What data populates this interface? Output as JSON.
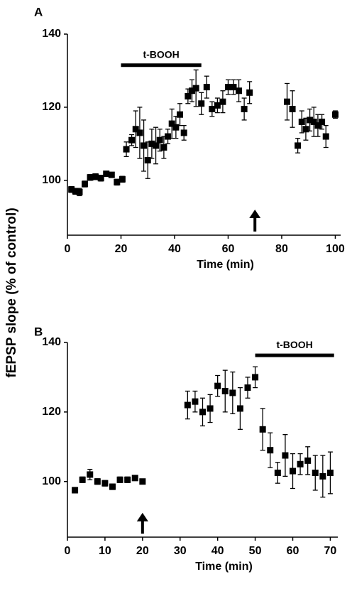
{
  "chart_data": [
    {
      "type": "scatter",
      "panel": "A",
      "ylabel": "fEPSP slope (% of control)",
      "xlabel": "Time (min)",
      "color": "#000000",
      "xlim": [
        0,
        102
      ],
      "ylim": [
        85,
        140
      ],
      "xticks": [
        0,
        20,
        40,
        60,
        80,
        100
      ],
      "yticks": [
        100,
        120,
        140
      ],
      "x": [
        1.5,
        3,
        4.5,
        6.5,
        8.5,
        10.5,
        12.5,
        14.5,
        16.5,
        18.5,
        20.5,
        22,
        24,
        25.5,
        27,
        28.5,
        30,
        31.5,
        33,
        34.5,
        36,
        37.5,
        39,
        40.5,
        42,
        43.5,
        45,
        46.5,
        48,
        50,
        52,
        54,
        56,
        58,
        60,
        62,
        64,
        66,
        68,
        82,
        84,
        86,
        87.5,
        89,
        90.5,
        92,
        93.5,
        95,
        96.5,
        100
      ],
      "values": [
        97.5,
        97,
        96.8,
        99,
        100.8,
        101,
        100.6,
        101.8,
        101.5,
        99.5,
        100.3,
        108.5,
        111,
        114,
        113,
        109.5,
        105.5,
        110,
        109.5,
        111,
        109,
        112,
        115.5,
        114.5,
        118,
        113,
        123,
        124.5,
        125.2,
        121,
        125.5,
        119.5,
        120.5,
        121.5,
        125.5,
        125.5,
        124.5,
        119.5,
        124,
        121.5,
        119.5,
        109.5,
        116,
        114,
        116.5,
        116,
        115,
        116,
        112,
        118
      ],
      "errors": [
        0.8,
        0.8,
        1,
        0.8,
        0.8,
        0.8,
        0.8,
        0.6,
        0.6,
        0.8,
        0.8,
        2,
        1.5,
        5,
        7,
        7,
        5,
        4,
        5,
        3,
        3,
        2,
        4,
        3,
        3,
        2,
        2,
        3,
        5,
        3,
        3,
        2,
        2,
        3,
        2,
        2,
        3,
        3,
        3,
        5,
        5,
        2,
        3,
        3,
        3,
        4,
        3,
        2,
        3,
        1
      ],
      "treatment": {
        "label": "t-BOOH",
        "x": [
          20,
          50
        ],
        "y": 131.5
      },
      "arrow": {
        "x": 70,
        "y": [
          86,
          92
        ]
      }
    },
    {
      "type": "scatter",
      "panel": "B",
      "xlabel": "Time (min)",
      "color": "#000000",
      "xlim": [
        0,
        72
      ],
      "ylim": [
        84,
        140
      ],
      "xticks": [
        0,
        10,
        20,
        30,
        40,
        50,
        60,
        70
      ],
      "yticks": [
        100,
        120,
        140
      ],
      "x": [
        2,
        4,
        6,
        8,
        10,
        12,
        14,
        16,
        18,
        20,
        32,
        34,
        36,
        38,
        40,
        42,
        44,
        46,
        48,
        50,
        52,
        54,
        56,
        58,
        60,
        62,
        64,
        66,
        68,
        70
      ],
      "values": [
        97.5,
        100.5,
        102,
        100,
        99.5,
        98.5,
        100.5,
        100.5,
        101,
        100,
        122,
        123,
        120,
        121,
        127.5,
        126,
        125.5,
        121,
        127,
        130,
        115,
        109,
        102.5,
        107.5,
        103,
        105,
        106,
        102.5,
        101.5,
        102.5
      ],
      "errors": [
        0.8,
        0.8,
        1.5,
        0.8,
        0.8,
        0.8,
        0.8,
        0.8,
        0.6,
        0.6,
        4,
        3,
        4,
        4,
        3,
        6,
        6,
        6,
        3,
        3,
        6,
        5,
        3,
        6,
        5,
        3,
        4,
        5,
        6,
        6
      ],
      "treatment": {
        "label": "t-BOOH",
        "x": [
          50,
          71
        ],
        "y": 136.3
      },
      "arrow": {
        "x": 20,
        "y": [
          85,
          91
        ]
      }
    }
  ]
}
